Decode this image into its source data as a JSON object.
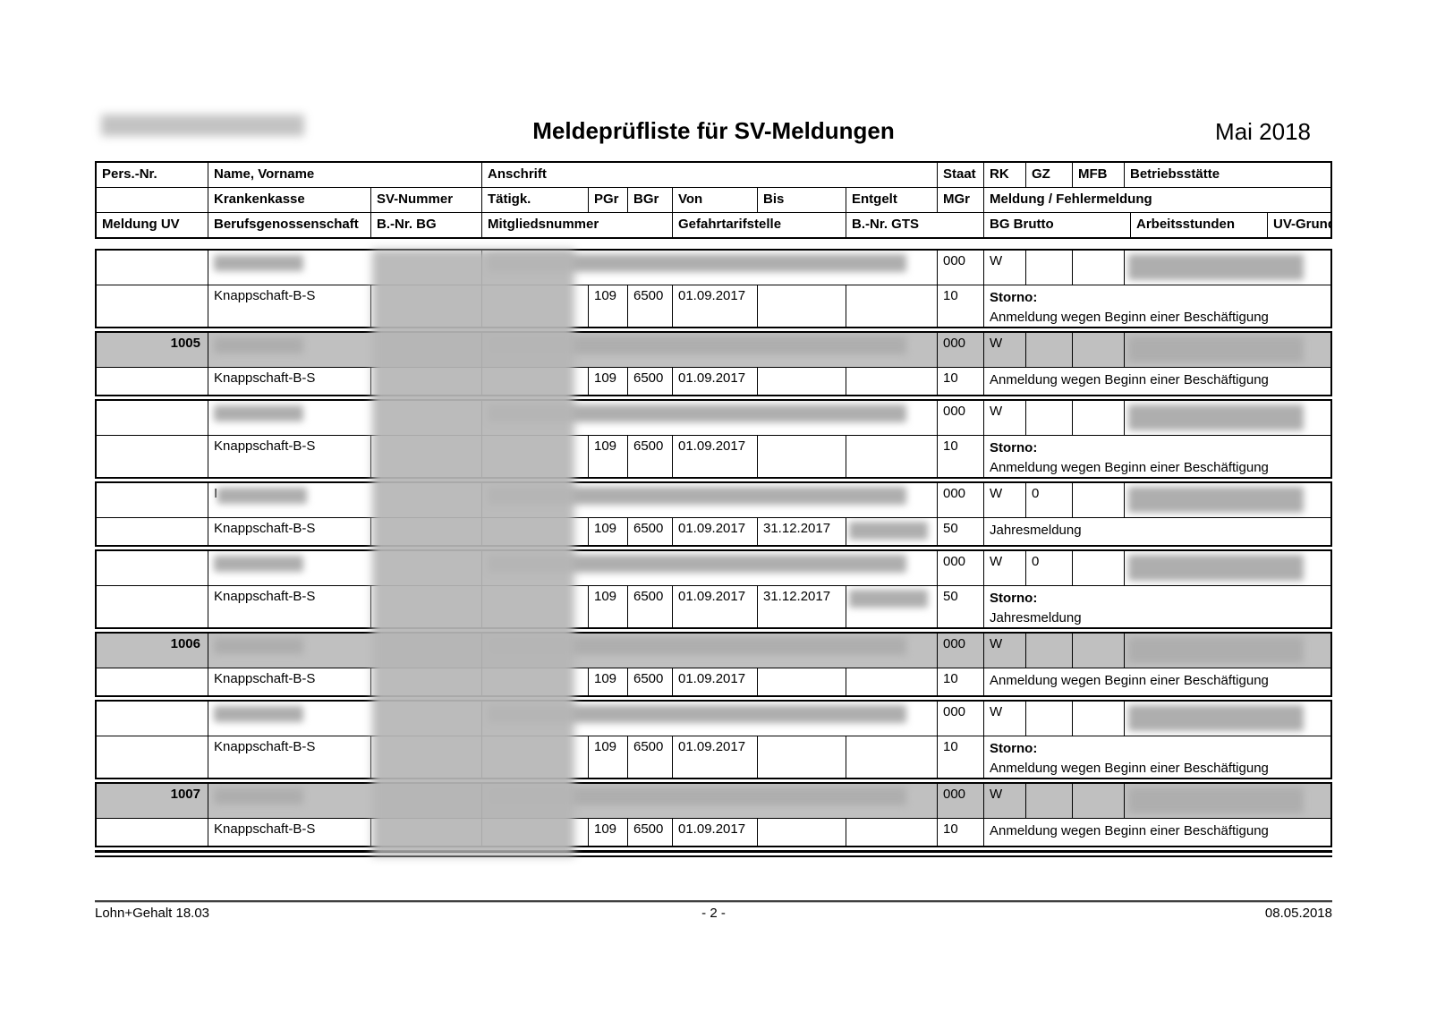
{
  "page": {
    "title": "Meldeprüfliste für SV-Meldungen",
    "period": "Mai 2018",
    "company_name": "(unkenntlich gemacht)"
  },
  "table_header": {
    "row1": {
      "pers": "Pers.-Nr.",
      "name": "Name, Vorname",
      "anschrift": "Anschrift",
      "staat": "Staat",
      "rk": "RK",
      "gz": "GZ",
      "mfb": "MFB",
      "betriebsstaette": "Betriebsstätte"
    },
    "row2": {
      "blank": "",
      "krankenkasse": "Krankenkasse",
      "sv_nummer": "SV-Nummer",
      "taetigk": "Tätigk.",
      "pgr": "PGr",
      "bgr": "BGr",
      "von": "Von",
      "bis": "Bis",
      "entgelt": "Entgelt",
      "mgr": "MGr",
      "meldung": "Meldung / Fehlermeldung"
    },
    "row3": {
      "meldung_uv": "Meldung UV",
      "berufsgenossenschaft": "Berufsgenossenschaft",
      "bnr_bg": "B.-Nr. BG",
      "mitgliedsnummer": "Mitgliedsnummer",
      "gefahrtarifstelle": "Gefahrtarifstelle",
      "bnr_gts": "B.-Nr. GTS",
      "bg_brutto": "BG Brutto",
      "arbeitsstunden": "Arbeitsstunden",
      "uv_grund": "UV-Grund"
    }
  },
  "groups": [
    {
      "pers_nr": "",
      "highlight": false,
      "name_prefix": "",
      "staat": "000",
      "rk": "W",
      "gz": "",
      "mfb": "",
      "krankenkasse": "Knappschaft-B-S",
      "pgr": "109",
      "bgr": "6500",
      "von": "01.09.2017",
      "bis": "",
      "entgelt_redacted": false,
      "mgr": "10",
      "meldung_bold": "Storno:",
      "meldung_text": "Anmeldung wegen Beginn einer Beschäftigung"
    },
    {
      "pers_nr": "1005",
      "highlight": true,
      "name_prefix": "",
      "staat": "000",
      "rk": "W",
      "gz": "",
      "mfb": "",
      "krankenkasse": "Knappschaft-B-S",
      "pgr": "109",
      "bgr": "6500",
      "von": "01.09.2017",
      "bis": "",
      "entgelt_redacted": false,
      "mgr": "10",
      "meldung_bold": "",
      "meldung_text": "Anmeldung wegen Beginn einer Beschäftigung"
    },
    {
      "pers_nr": "",
      "highlight": false,
      "name_prefix": "",
      "staat": "000",
      "rk": "W",
      "gz": "",
      "mfb": "",
      "krankenkasse": "Knappschaft-B-S",
      "pgr": "109",
      "bgr": "6500",
      "von": "01.09.2017",
      "bis": "",
      "entgelt_redacted": false,
      "mgr": "10",
      "meldung_bold": "Storno:",
      "meldung_text": "Anmeldung wegen Beginn einer Beschäftigung"
    },
    {
      "pers_nr": "",
      "highlight": false,
      "name_prefix": "I",
      "staat": "000",
      "rk": "W",
      "gz": "0",
      "mfb": "",
      "krankenkasse": "Knappschaft-B-S",
      "pgr": "109",
      "bgr": "6500",
      "von": "01.09.2017",
      "bis": "31.12.2017",
      "entgelt_redacted": true,
      "mgr": "50",
      "meldung_bold": "",
      "meldung_text": "Jahresmeldung"
    },
    {
      "pers_nr": "",
      "highlight": false,
      "name_prefix": "",
      "staat": "000",
      "rk": "W",
      "gz": "0",
      "mfb": "",
      "krankenkasse": "Knappschaft-B-S",
      "pgr": "109",
      "bgr": "6500",
      "von": "01.09.2017",
      "bis": "31.12.2017",
      "entgelt_redacted": true,
      "mgr": "50",
      "meldung_bold": "Storno:",
      "meldung_text": "Jahresmeldung"
    },
    {
      "pers_nr": "1006",
      "highlight": true,
      "name_prefix": "",
      "staat": "000",
      "rk": "W",
      "gz": "",
      "mfb": "",
      "krankenkasse": "Knappschaft-B-S",
      "pgr": "109",
      "bgr": "6500",
      "von": "01.09.2017",
      "bis": "",
      "entgelt_redacted": false,
      "mgr": "10",
      "meldung_bold": "",
      "meldung_text": "Anmeldung wegen Beginn einer Beschäftigung"
    },
    {
      "pers_nr": "",
      "highlight": false,
      "name_prefix": "",
      "staat": "000",
      "rk": "W",
      "gz": "",
      "mfb": "",
      "krankenkasse": "Knappschaft-B-S",
      "pgr": "109",
      "bgr": "6500",
      "von": "01.09.2017",
      "bis": "",
      "entgelt_redacted": false,
      "mgr": "10",
      "meldung_bold": "Storno:",
      "meldung_text": "Anmeldung wegen Beginn einer Beschäftigung"
    },
    {
      "pers_nr": "1007",
      "highlight": true,
      "name_prefix": "",
      "staat": "000",
      "rk": "W",
      "gz": "",
      "mfb": "",
      "krankenkasse": "Knappschaft-B-S",
      "pgr": "109",
      "bgr": "6500",
      "von": "01.09.2017",
      "bis": "",
      "entgelt_redacted": false,
      "mgr": "10",
      "meldung_bold": "",
      "meldung_text": "Anmeldung wegen Beginn einer Beschäftigung"
    }
  ],
  "footer": {
    "left": "Lohn+Gehalt 18.03",
    "center": "- 2 -",
    "right": "08.05.2018"
  },
  "colors": {
    "highlight_row": "#c0c0c0",
    "border": "#000000",
    "redaction": "#b4b4b4"
  }
}
